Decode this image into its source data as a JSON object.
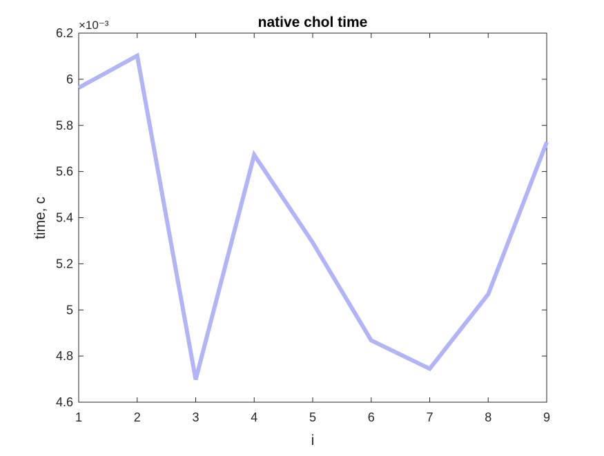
{
  "chart_data": {
    "type": "line",
    "title": "native chol time",
    "xlabel": "i",
    "ylabel": "time, c",
    "y_exponent_label": "×10⁻³",
    "x": [
      1,
      2,
      3,
      4,
      5,
      6,
      7,
      8,
      9
    ],
    "series": [
      {
        "values": [
          0.005963,
          0.006102,
          0.004698,
          0.005672,
          0.005292,
          0.004868,
          0.004745,
          0.005068,
          0.005727
        ],
        "color": "#b3b3f7"
      }
    ],
    "xlim": [
      1,
      9
    ],
    "ylim": [
      0.0046,
      0.0062
    ],
    "x_ticks": [
      1,
      2,
      3,
      4,
      5,
      6,
      7,
      8,
      9
    ],
    "y_ticks": [
      0.0046,
      0.0048,
      0.005,
      0.0052,
      0.0054,
      0.0056,
      0.0058,
      0.006,
      0.0062
    ],
    "x_tick_labels": [
      "1",
      "2",
      "3",
      "4",
      "5",
      "6",
      "7",
      "8",
      "9"
    ],
    "y_tick_labels": [
      "4.6",
      "4.8",
      "5",
      "5.2",
      "5.4",
      "5.6",
      "5.8",
      "6",
      "6.2"
    ],
    "grid": false,
    "legend": "none",
    "axis_color": "#262626"
  }
}
